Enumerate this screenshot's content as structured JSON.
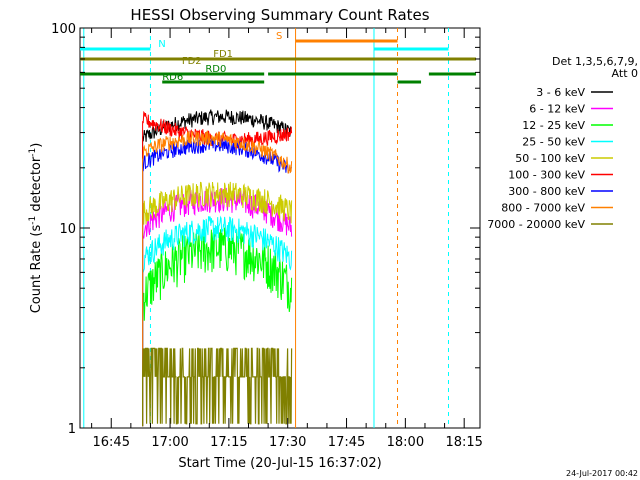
{
  "chart_data": {
    "type": "line",
    "title": "HESSI Observing Summary Count Rates",
    "xlabel": "Start Time (20-Jul-15 16:37:02)",
    "ylabel": "Count Rate (s⁻¹ detector⁻¹)",
    "yscale": "log",
    "xlim_minutes": [
      0,
      102
    ],
    "ylim": [
      1,
      100
    ],
    "x_ticks": [
      "16:45",
      "17:00",
      "17:15",
      "17:30",
      "17:45",
      "18:00",
      "18:15"
    ],
    "y_ticks": [
      "1",
      "10",
      "100"
    ],
    "legend_title": "Det 1,3,5,6,7,9,",
    "legend_subtitle": "Att 0",
    "series": [
      {
        "name": "3 - 6 keV",
        "color": "#000000",
        "values": [
          [
            17.1,
            28
          ],
          [
            17.25,
            36
          ],
          [
            17.5,
            30
          ]
        ]
      },
      {
        "name": "6 - 12 keV",
        "color": "#ff00ff",
        "values": [
          [
            17.1,
            10
          ],
          [
            17.25,
            14
          ],
          [
            17.5,
            10
          ]
        ]
      },
      {
        "name": "12 - 25 keV",
        "color": "#00ff00",
        "values": [
          [
            17.1,
            4.5
          ],
          [
            17.25,
            8
          ],
          [
            17.5,
            5
          ]
        ]
      },
      {
        "name": "25 - 50 keV",
        "color": "#00ffff",
        "values": [
          [
            17.1,
            7
          ],
          [
            17.25,
            10
          ],
          [
            17.5,
            7
          ]
        ]
      },
      {
        "name": "50 - 100 keV",
        "color": "#cccc00",
        "values": [
          [
            17.1,
            12
          ],
          [
            17.25,
            15
          ],
          [
            17.5,
            12
          ]
        ]
      },
      {
        "name": "100 - 300 keV",
        "color": "#ff0000",
        "values": [
          [
            17.1,
            35
          ],
          [
            17.25,
            28
          ],
          [
            17.5,
            30
          ]
        ]
      },
      {
        "name": "300 - 800 keV",
        "color": "#0000ff",
        "values": [
          [
            17.1,
            21
          ],
          [
            17.25,
            26
          ],
          [
            17.5,
            19
          ]
        ]
      },
      {
        "name": "800 - 7000 keV",
        "color": "#ff8000",
        "values": [
          [
            17.1,
            24
          ],
          [
            17.25,
            28
          ],
          [
            17.5,
            20
          ]
        ]
      },
      {
        "name": "7000 - 20000 keV",
        "color": "#808000",
        "values": [
          [
            17.1,
            1.8
          ],
          [
            17.25,
            2.5
          ],
          [
            17.5,
            1.8
          ]
        ]
      }
    ],
    "flags": [
      {
        "label": "N",
        "color": "#00ffff"
      },
      {
        "label": "S",
        "color": "#ff8000"
      },
      {
        "label": "FD1",
        "color": "#808000"
      },
      {
        "label": "FD2",
        "color": "#808000"
      },
      {
        "label": "RD0",
        "color": "#008000"
      },
      {
        "label": "RD6",
        "color": "#008000"
      }
    ]
  },
  "footer": {
    "timestamp": "24-Jul-2017 00:42"
  }
}
